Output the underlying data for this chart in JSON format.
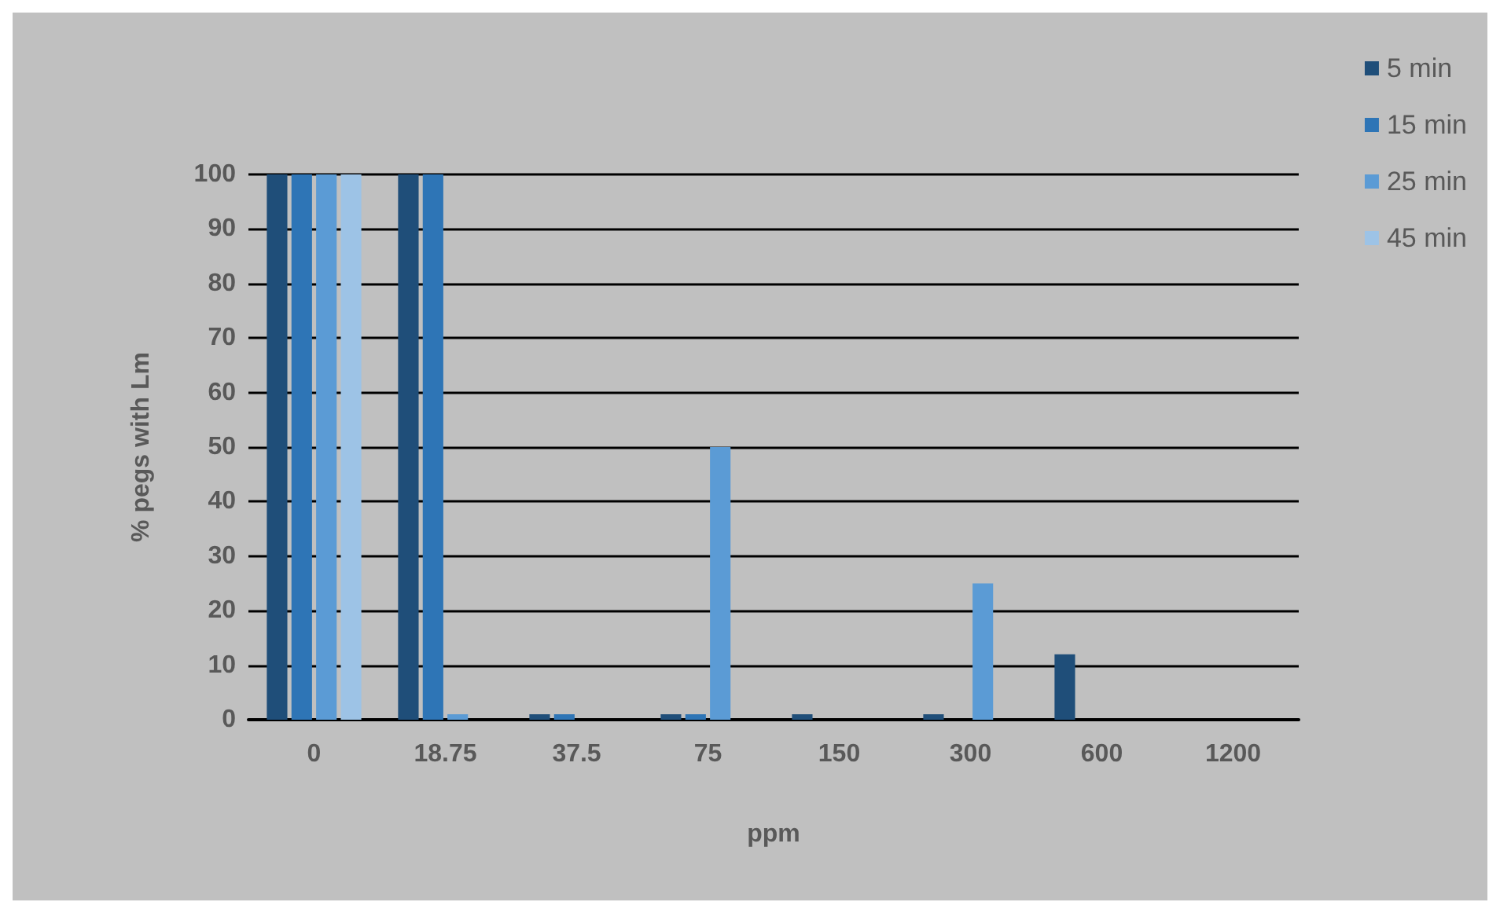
{
  "chart_data": {
    "type": "bar",
    "xlabel": "ppm",
    "ylabel": "% pegs with Lm",
    "categories": [
      "0",
      "18.75",
      "37.5",
      "75",
      "150",
      "300",
      "600",
      "1200"
    ],
    "series": [
      {
        "name": "5 min",
        "color": "#1f4e79",
        "values": [
          100,
          100,
          1,
          1,
          1,
          1,
          12,
          0
        ]
      },
      {
        "name": "15 min",
        "color": "#2e75b6",
        "values": [
          100,
          100,
          1,
          1,
          0,
          0,
          0,
          0
        ]
      },
      {
        "name": "25 min",
        "color": "#5b9bd5",
        "values": [
          100,
          1,
          0,
          50,
          0,
          25,
          0,
          0
        ]
      },
      {
        "name": "45 min",
        "color": "#9dc3e6",
        "values": [
          100,
          0,
          0,
          0,
          0,
          0,
          0,
          0
        ]
      }
    ],
    "ylim": [
      0,
      100
    ],
    "yticks": [
      0,
      10,
      20,
      30,
      40,
      50,
      60,
      70,
      80,
      90,
      100
    ],
    "grid": "y",
    "legend": "top right"
  }
}
